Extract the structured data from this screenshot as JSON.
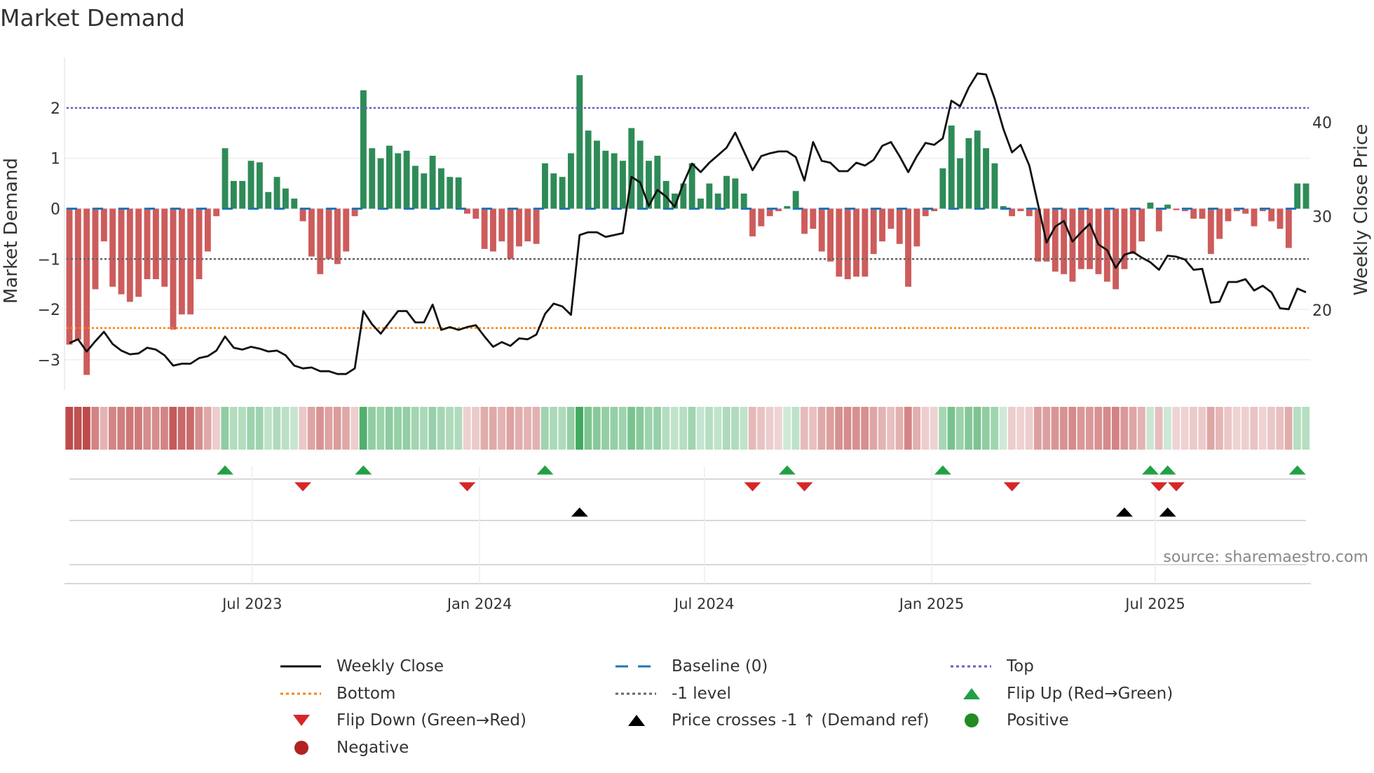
{
  "title": "Market Demand",
  "source": "source: sharemaestro.com",
  "chart_data": {
    "type": "bar+line",
    "title": "Market Demand",
    "ylabel": "Market Demand",
    "y2label": "Weekly Close Price",
    "start_date": "2023-02-03",
    "frequency": "weekly",
    "ylim": [
      -3.6,
      3.0
    ],
    "y2lim": [
      11.5,
      46.9
    ],
    "yticks": [
      2,
      1,
      0,
      -1,
      -2,
      -3
    ],
    "ytick_labels": [
      "2",
      "1",
      "0",
      "−1",
      "−2",
      "−3"
    ],
    "y2ticks": [
      40,
      30,
      20
    ],
    "y2tick_labels": [
      "40",
      "30",
      "20"
    ],
    "xticks": [
      "2023-07-01",
      "2024-01-01",
      "2024-07-01",
      "2025-01-01",
      "2025-07-01"
    ],
    "xtick_labels": [
      "Jul 2023",
      "Jan 2024",
      "Jul 2024",
      "Jan 2025",
      "Jul 2025"
    ],
    "reference_lines": {
      "top": 2.0,
      "bottom": -2.37,
      "minus_one": -1,
      "baseline": 0
    },
    "demand": [
      -2.7,
      -2.6,
      -3.3,
      -1.6,
      -0.65,
      -1.55,
      -1.7,
      -1.85,
      -1.75,
      -1.4,
      -1.4,
      -1.55,
      -2.4,
      -2.1,
      -2.1,
      -1.4,
      -0.85,
      -0.15,
      1.2,
      0.55,
      0.55,
      0.95,
      0.92,
      0.33,
      0.63,
      0.4,
      0.2,
      -0.25,
      -0.95,
      -1.3,
      -1.0,
      -1.1,
      -0.85,
      -0.15,
      2.35,
      1.2,
      1.0,
      1.25,
      1.1,
      1.15,
      0.85,
      0.7,
      1.05,
      0.8,
      0.63,
      0.62,
      -0.1,
      -0.2,
      -0.8,
      -0.85,
      -0.65,
      -1.0,
      -0.75,
      -0.65,
      -0.7,
      0.9,
      0.7,
      0.63,
      1.1,
      2.65,
      1.55,
      1.35,
      1.15,
      1.1,
      0.95,
      1.6,
      1.35,
      0.95,
      1.05,
      0.55,
      0.3,
      0.5,
      0.9,
      0.2,
      0.5,
      0.3,
      0.65,
      0.6,
      0.3,
      -0.55,
      -0.35,
      -0.15,
      -0.05,
      0.05,
      0.35,
      -0.5,
      -0.4,
      -0.85,
      -1.05,
      -1.35,
      -1.4,
      -1.35,
      -1.35,
      -0.9,
      -0.65,
      -0.4,
      -0.7,
      -1.55,
      -0.75,
      -0.15,
      -0.05,
      0.8,
      1.65,
      1.0,
      1.4,
      1.55,
      1.2,
      0.9,
      0.05,
      -0.15,
      -0.05,
      -0.15,
      -1.05,
      -1.05,
      -1.25,
      -1.3,
      -1.45,
      -1.2,
      -1.2,
      -1.3,
      -1.45,
      -1.6,
      -1.2,
      -0.9,
      -0.65,
      0.12,
      -0.45,
      0.08,
      -0.03,
      -0.05,
      -0.2,
      -0.2,
      -0.9,
      -0.6,
      -0.25,
      -0.05,
      -0.1,
      -0.35,
      -0.05,
      -0.25,
      -0.4,
      -0.78,
      0.5,
      0.5
    ],
    "close": [
      16.5,
      16.9,
      15.6,
      16.7,
      17.7,
      16.4,
      15.7,
      15.3,
      15.4,
      16.0,
      15.8,
      15.2,
      14.1,
      14.3,
      14.3,
      14.9,
      15.1,
      15.7,
      17.2,
      16.0,
      15.8,
      16.1,
      15.9,
      15.6,
      15.7,
      15.2,
      14.1,
      13.8,
      13.9,
      13.5,
      13.5,
      13.2,
      13.2,
      13.8,
      19.9,
      18.5,
      17.5,
      18.7,
      19.9,
      19.9,
      18.7,
      18.7,
      20.6,
      17.9,
      18.2,
      17.9,
      18.2,
      18.4,
      17.2,
      16.1,
      16.6,
      16.2,
      17.0,
      16.9,
      17.4,
      19.6,
      20.7,
      20.4,
      19.5,
      28.0,
      28.3,
      28.3,
      27.8,
      28.0,
      28.2,
      34.2,
      33.6,
      31.1,
      32.8,
      32.1,
      31.0,
      33.5,
      35.6,
      34.7,
      35.7,
      36.5,
      37.3,
      38.9,
      36.9,
      34.9,
      36.4,
      36.7,
      36.9,
      36.9,
      36.3,
      33.8,
      37.9,
      35.9,
      35.7,
      34.8,
      34.8,
      35.7,
      35.4,
      36.0,
      37.5,
      37.9,
      36.4,
      34.7,
      36.4,
      37.8,
      37.6,
      38.3,
      42.3,
      41.7,
      43.7,
      45.2,
      45.1,
      42.5,
      39.3,
      36.8,
      37.6,
      35.4,
      31.3,
      27.2,
      28.9,
      29.5,
      27.3,
      28.3,
      29.2,
      27.0,
      26.4,
      24.5,
      25.9,
      26.2,
      25.6,
      25.1,
      24.3,
      25.8,
      25.7,
      25.4,
      24.3,
      24.4,
      20.8,
      20.9,
      23.0,
      23.0,
      23.3,
      22.1,
      22.6,
      21.9,
      20.2,
      20.1,
      22.3,
      21.9
    ],
    "price_cross_dates": [
      "2024-03-22",
      "2025-06-06",
      "2025-07-11"
    ],
    "colors": {
      "positive": "#2e8b57",
      "negative": "#cd5c5c",
      "close": "#111111",
      "baseline": "#1f77b4",
      "top": "#6a5acd",
      "bottom": "#ff7f0e",
      "minus_one": "#666666",
      "flip_up": "#22a045",
      "flip_down": "#d62728",
      "cross": "#000000",
      "pos_dot": "#228b22",
      "neg_dot": "#b22222"
    },
    "legend": {
      "placement": "bottom",
      "items": [
        "Weekly Close",
        "Baseline (0)",
        "Top",
        "Bottom",
        "-1 level",
        "Flip Up (Red→Green)",
        "Flip Down (Green→Red)",
        "Price crosses -1 ↑ (Demand ref)",
        "Positive",
        "Negative"
      ]
    }
  }
}
